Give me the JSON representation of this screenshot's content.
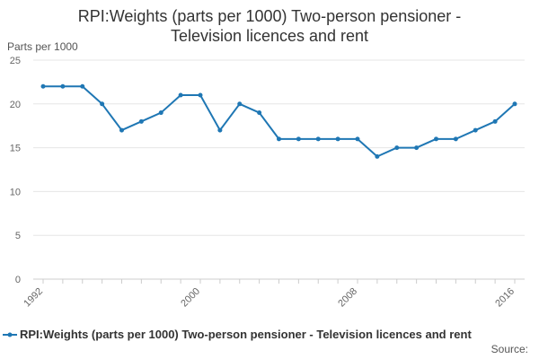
{
  "chart_data": {
    "type": "line",
    "title_lines": [
      "RPI:Weights (parts per 1000) Two-person pensioner -",
      "Television licences and rent"
    ],
    "ylabel": "Parts per 1000",
    "xlabel": "",
    "x": [
      1992,
      1993,
      1994,
      1995,
      1996,
      1997,
      1998,
      1999,
      2000,
      2001,
      2002,
      2003,
      2004,
      2005,
      2006,
      2007,
      2008,
      2009,
      2010,
      2011,
      2012,
      2013,
      2014,
      2015,
      2016
    ],
    "series": [
      {
        "name": "RPI:Weights (parts per 1000) Two-person pensioner - Television licences and rent",
        "values": [
          22,
          22,
          22,
          20,
          17,
          18,
          19,
          21,
          21,
          17,
          20,
          19,
          16,
          16,
          16,
          16,
          16,
          14,
          15,
          15,
          16,
          16,
          17,
          18,
          20
        ]
      }
    ],
    "xlim": [
      1992,
      2016
    ],
    "ylim": [
      0,
      25
    ],
    "yticks": [
      0,
      5,
      10,
      15,
      20,
      25
    ],
    "xtick_labels": [
      "1992",
      "2000",
      "2008",
      "2016"
    ],
    "grid": true,
    "legend_position": "bottom",
    "source_label": "Source:",
    "line_color": "#1f77b4"
  }
}
